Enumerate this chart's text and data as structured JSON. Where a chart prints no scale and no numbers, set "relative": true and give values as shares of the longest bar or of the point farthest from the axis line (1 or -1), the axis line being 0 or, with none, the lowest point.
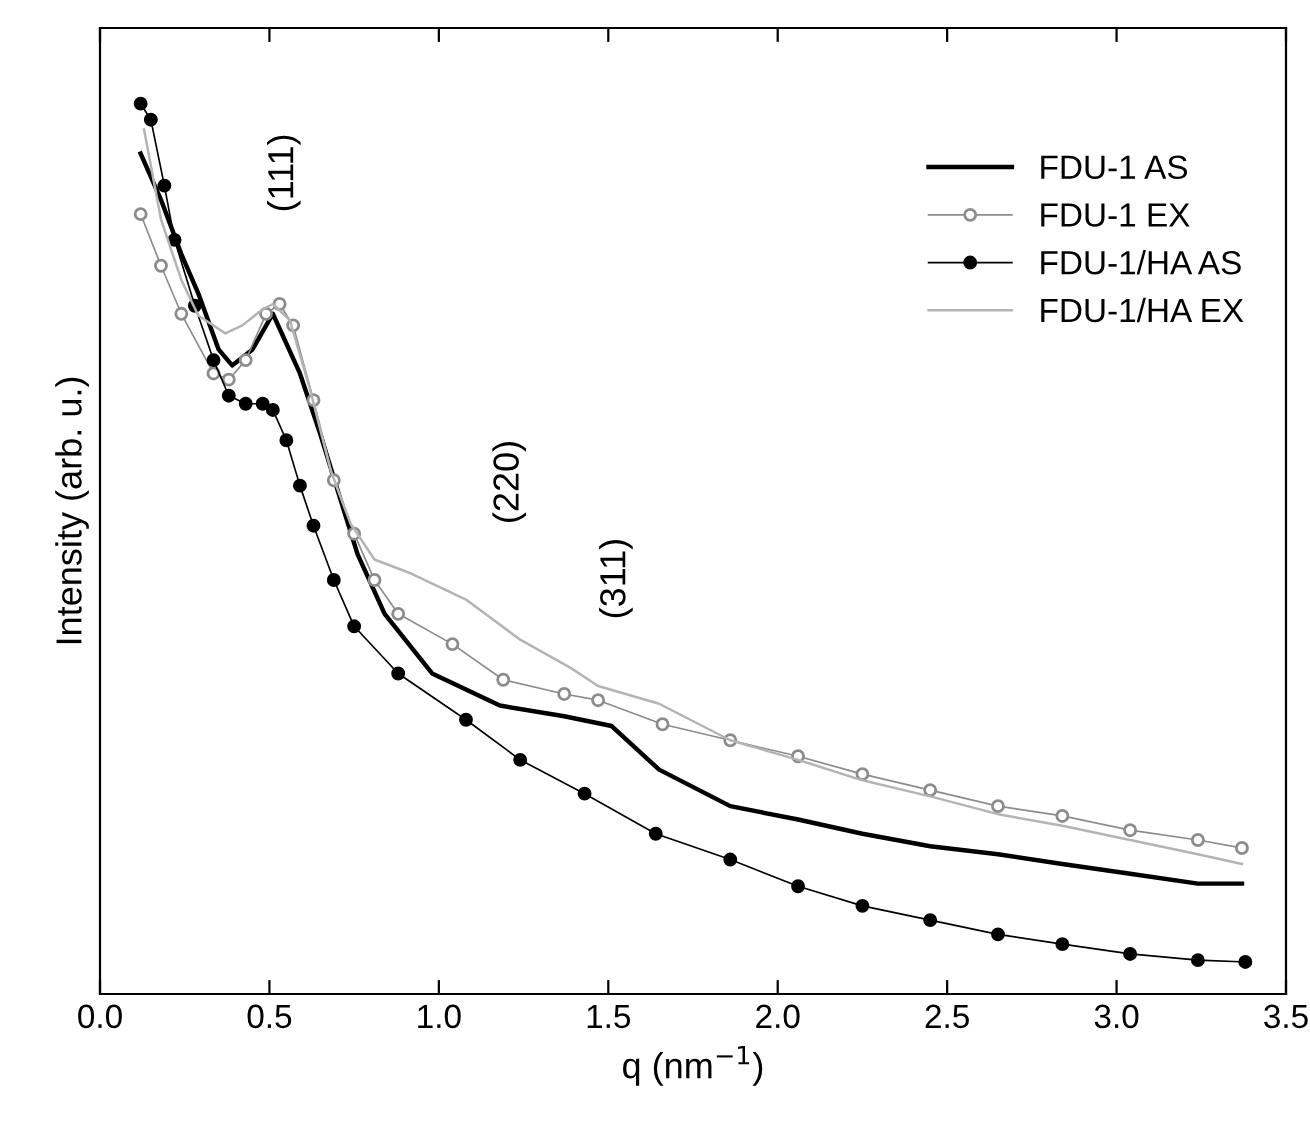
{
  "chart_data": {
    "type": "line",
    "xlabel": "q (nm$^{−1}$)",
    "ylabel": "Intensity (arb. u.)",
    "relative": true,
    "xlim": [
      0,
      3.5
    ],
    "xticks": [
      {
        "value": 0,
        "label": "0.0"
      },
      0.5,
      {
        "value": 1,
        "label": "1.0"
      },
      1.5,
      {
        "value": 2,
        "label": "2.0"
      },
      2.5,
      {
        "value": 3,
        "label": "3.0"
      },
      3.5
    ],
    "legend": "top right",
    "grid": false,
    "annotations": [
      "(111)",
      "(220)",
      "(311)"
    ],
    "series": [
      {
        "name": "FDU-1 AS",
        "color": "#000000",
        "marker": "none",
        "x": [
          0.12,
          0.18,
          0.24,
          0.29,
          0.35,
          0.39,
          0.45,
          0.51,
          0.59,
          0.65,
          0.71,
          0.76,
          0.84,
          0.98,
          1.18,
          1.37,
          1.51,
          1.65,
          1.86,
          2.06,
          2.25,
          2.45,
          2.65,
          2.84,
          3.04,
          3.24,
          3.37
        ],
        "values": [
          0.944,
          0.892,
          0.831,
          0.787,
          0.724,
          0.706,
          0.724,
          0.764,
          0.697,
          0.629,
          0.555,
          0.494,
          0.427,
          0.36,
          0.324,
          0.312,
          0.301,
          0.252,
          0.211,
          0.196,
          0.18,
          0.166,
          0.157,
          0.146,
          0.135,
          0.124,
          0.124
        ]
      },
      {
        "name": "FDU-1 EX",
        "color": "#8c8c8c",
        "marker": "circle",
        "x": [
          0.12,
          0.18,
          0.24,
          0.335,
          0.38,
          0.43,
          0.49,
          0.53,
          0.57,
          0.63,
          0.69,
          0.75,
          0.81,
          0.88,
          1.04,
          1.19,
          1.37,
          1.47,
          1.66,
          1.86,
          2.06,
          2.25,
          2.45,
          2.65,
          2.84,
          3.04,
          3.24,
          3.37
        ],
        "values": [
          0.876,
          0.818,
          0.764,
          0.697,
          0.69,
          0.712,
          0.764,
          0.775,
          0.751,
          0.667,
          0.577,
          0.517,
          0.465,
          0.427,
          0.393,
          0.353,
          0.337,
          0.33,
          0.303,
          0.285,
          0.267,
          0.247,
          0.229,
          0.211,
          0.2,
          0.184,
          0.173,
          0.164
        ]
      },
      {
        "name": "FDU-1/HA AS",
        "color": "#000000",
        "marker": "circle",
        "x": [
          0.12,
          0.15,
          0.19,
          0.22,
          0.28,
          0.335,
          0.38,
          0.43,
          0.48,
          0.51,
          0.55,
          0.59,
          0.63,
          0.69,
          0.75,
          0.88,
          1.08,
          1.24,
          1.43,
          1.64,
          1.86,
          2.06,
          2.25,
          2.45,
          2.65,
          2.84,
          3.04,
          3.24,
          3.38
        ],
        "values": [
          1.0,
          0.982,
          0.908,
          0.847,
          0.773,
          0.712,
          0.672,
          0.663,
          0.663,
          0.656,
          0.622,
          0.571,
          0.526,
          0.465,
          0.413,
          0.36,
          0.308,
          0.263,
          0.225,
          0.18,
          0.151,
          0.121,
          0.099,
          0.083,
          0.067,
          0.056,
          0.045,
          0.038,
          0.036
        ]
      },
      {
        "name": "FDU-1/HA EX",
        "color": "#b4b4b4",
        "marker": "none",
        "x": [
          0.13,
          0.18,
          0.24,
          0.29,
          0.37,
          0.42,
          0.48,
          0.51,
          0.56,
          0.62,
          0.68,
          0.74,
          0.81,
          0.92,
          1.08,
          1.24,
          1.39,
          1.47,
          1.65,
          1.86,
          2.06,
          2.25,
          2.45,
          2.65,
          2.84,
          3.04,
          3.24,
          3.37
        ],
        "values": [
          0.971,
          0.87,
          0.802,
          0.762,
          0.742,
          0.751,
          0.769,
          0.775,
          0.757,
          0.679,
          0.589,
          0.528,
          0.488,
          0.472,
          0.443,
          0.398,
          0.366,
          0.346,
          0.326,
          0.285,
          0.263,
          0.24,
          0.222,
          0.202,
          0.189,
          0.173,
          0.157,
          0.146
        ]
      }
    ]
  }
}
